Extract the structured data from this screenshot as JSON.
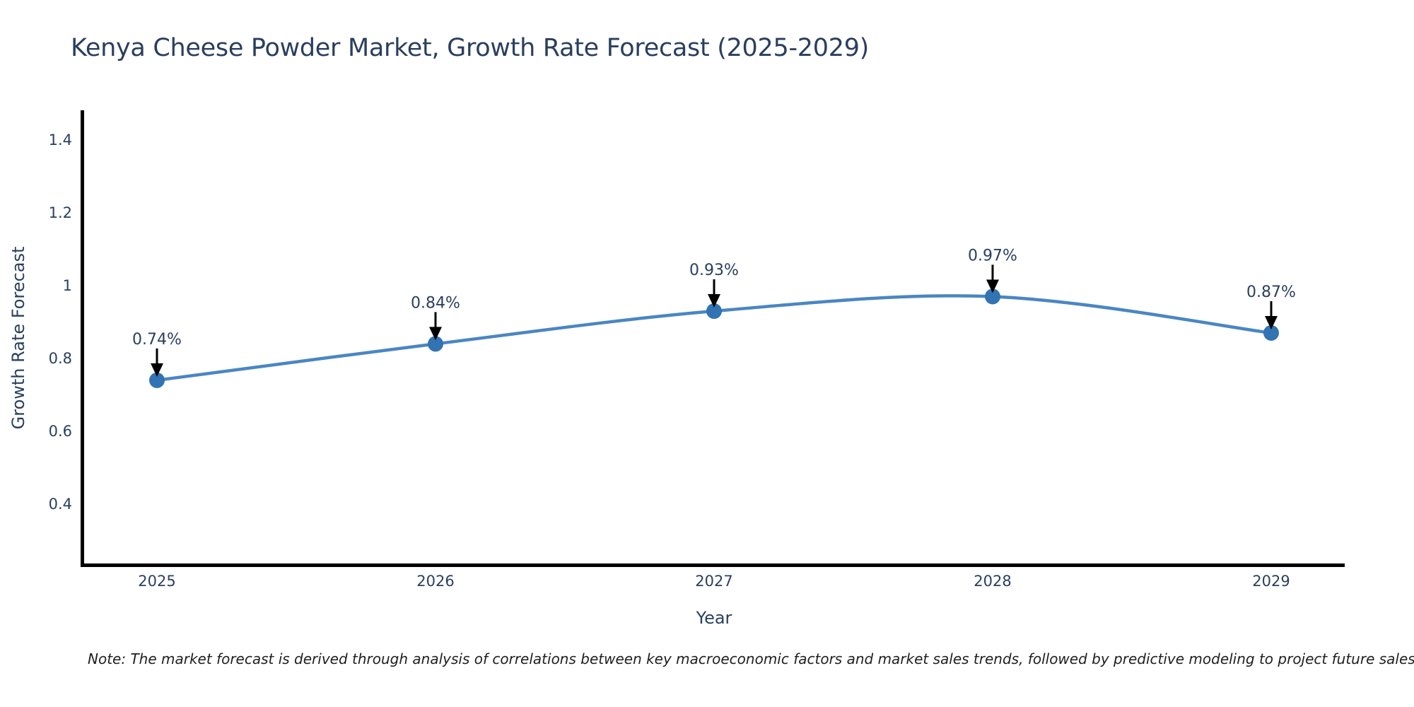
{
  "title": "Kenya Cheese Powder Market, Growth Rate Forecast (2025-2029)",
  "note": "Note: The market forecast is derived through analysis of correlations between key macroeconomic factors and market sales trends, followed by predictive modeling to project future sales",
  "colors": {
    "title_text": "#2a3f5f",
    "tick_text": "#2a3f5f",
    "axis_line": "#000000",
    "line": "#4a86c2",
    "marker": "#3273b3",
    "annotation_arrow": "#000000",
    "annotation_text": "#2a3f5f",
    "background": "#ffffff"
  },
  "chart_data": {
    "type": "line",
    "title": "Kenya Cheese Powder Market, Growth Rate Forecast (2025-2029)",
    "xlabel": "Year",
    "ylabel": "Growth Rate Forecast",
    "x": [
      2025,
      2026,
      2027,
      2028,
      2029
    ],
    "series": [
      {
        "name": "Growth Rate Forecast",
        "values": [
          0.74,
          0.84,
          0.93,
          0.97,
          0.87
        ]
      }
    ],
    "point_labels": [
      "0.74%",
      "0.84%",
      "0.93%",
      "0.97%",
      "0.87%"
    ],
    "xtick_labels": [
      "2025",
      "2026",
      "2027",
      "2028",
      "2029"
    ],
    "ytick_values": [
      1.4,
      1.2,
      1.0,
      0.8,
      0.6,
      0.4
    ],
    "ytick_labels": [
      "1.4",
      "1.2",
      "1",
      "0.8",
      "0.6",
      "0.4"
    ],
    "ylim": [
      0.23,
      1.48
    ],
    "xlim": [
      2024.73,
      2029.26
    ],
    "grid": false,
    "legend": false,
    "line_shape": "spline",
    "markers": "circle",
    "annotations": "black arrow from each percentage label down to its data point"
  }
}
